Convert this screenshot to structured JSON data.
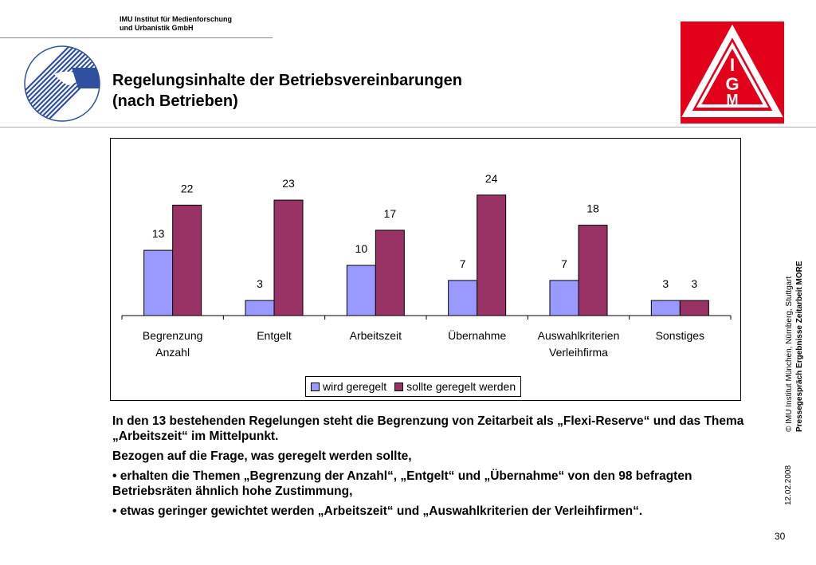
{
  "header": {
    "institute_line1": "IMU Institut für Medienforschung",
    "institute_line2": "und Urbanistik GmbH",
    "title_line1": "Regelungsinhalte der Betriebsvereinbarungen",
    "title_line2": "(nach Betrieben)",
    "logo_right_letters": [
      "I",
      "G",
      "M"
    ]
  },
  "colors": {
    "series1": "#9999ff",
    "series2": "#993366",
    "logo_red": "#e3001b"
  },
  "chart_data": {
    "type": "bar",
    "categories": [
      [
        "Begrenzung",
        "Anzahl"
      ],
      [
        "Entgelt"
      ],
      [
        "Arbeitszeit"
      ],
      [
        "Übernahme"
      ],
      [
        "Auswahlkriterien",
        "Verleihfirma"
      ],
      [
        "Sonstiges"
      ]
    ],
    "series": [
      {
        "name": "wird geregelt",
        "values": [
          13,
          3,
          10,
          7,
          7,
          3
        ]
      },
      {
        "name": "sollte geregelt werden",
        "values": [
          22,
          23,
          17,
          24,
          18,
          3
        ]
      }
    ],
    "ylim": [
      0,
      25
    ],
    "grid": false,
    "data_labels": true,
    "legend_position": "bottom"
  },
  "body_text": {
    "p1": "In den 13 bestehenden Regelungen steht die Begrenzung von Zeitarbeit als „Flexi-Reserve“ und das Thema „Arbeitszeit“ im Mittelpunkt.",
    "p2": "Bezogen auf die Frage, was geregelt werden sollte,",
    "p3": "• erhalten die Themen „Begrenzung der Anzahl“, „Entgelt“ und „Übernahme“ von den 98 befragten Betriebsräten ähnlich hohe Zustimmung,",
    "p4": "• etwas geringer gewichtet werden „Arbeitszeit“ und „Auswahlkriterien der Verleihfirmen“."
  },
  "sidebar": {
    "copyright": "© IMU Institut München, Nürnberg, Stuttgart",
    "presentation": "Pressegespräch Ergebnisse Zeitarbeit MORE",
    "date": "12.02.2008"
  },
  "footer": {
    "page_number": "30"
  }
}
